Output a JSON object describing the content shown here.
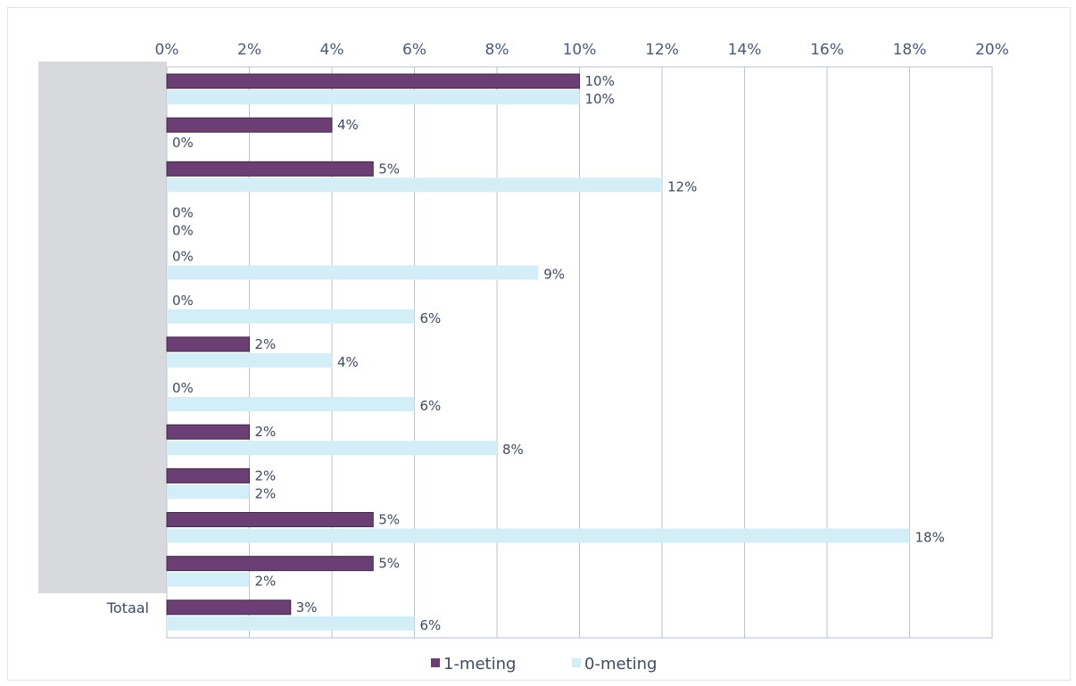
{
  "chart_data": {
    "type": "bar",
    "orientation": "horizontal",
    "categories": [
      "",
      "",
      "",
      "",
      "",
      "",
      "",
      "",
      "",
      "",
      "",
      "",
      "Totaal"
    ],
    "series": [
      {
        "name": "1-meting",
        "color": "#6b3f73",
        "values": [
          10,
          4,
          5,
          0,
          0,
          0,
          2,
          0,
          2,
          2,
          5,
          5,
          3
        ]
      },
      {
        "name": "0-meting",
        "color": "#d4eef7",
        "values": [
          10,
          0,
          12,
          0,
          9,
          6,
          4,
          6,
          8,
          2,
          18,
          2,
          6
        ]
      }
    ],
    "xlim": [
      0,
      20
    ],
    "x_ticks": [
      0,
      2,
      4,
      6,
      8,
      10,
      12,
      14,
      16,
      18,
      20
    ],
    "tick_suffix": "%",
    "grid": true,
    "legend_position": "bottom",
    "redacted_category_area_color": "#d7d9dc"
  }
}
